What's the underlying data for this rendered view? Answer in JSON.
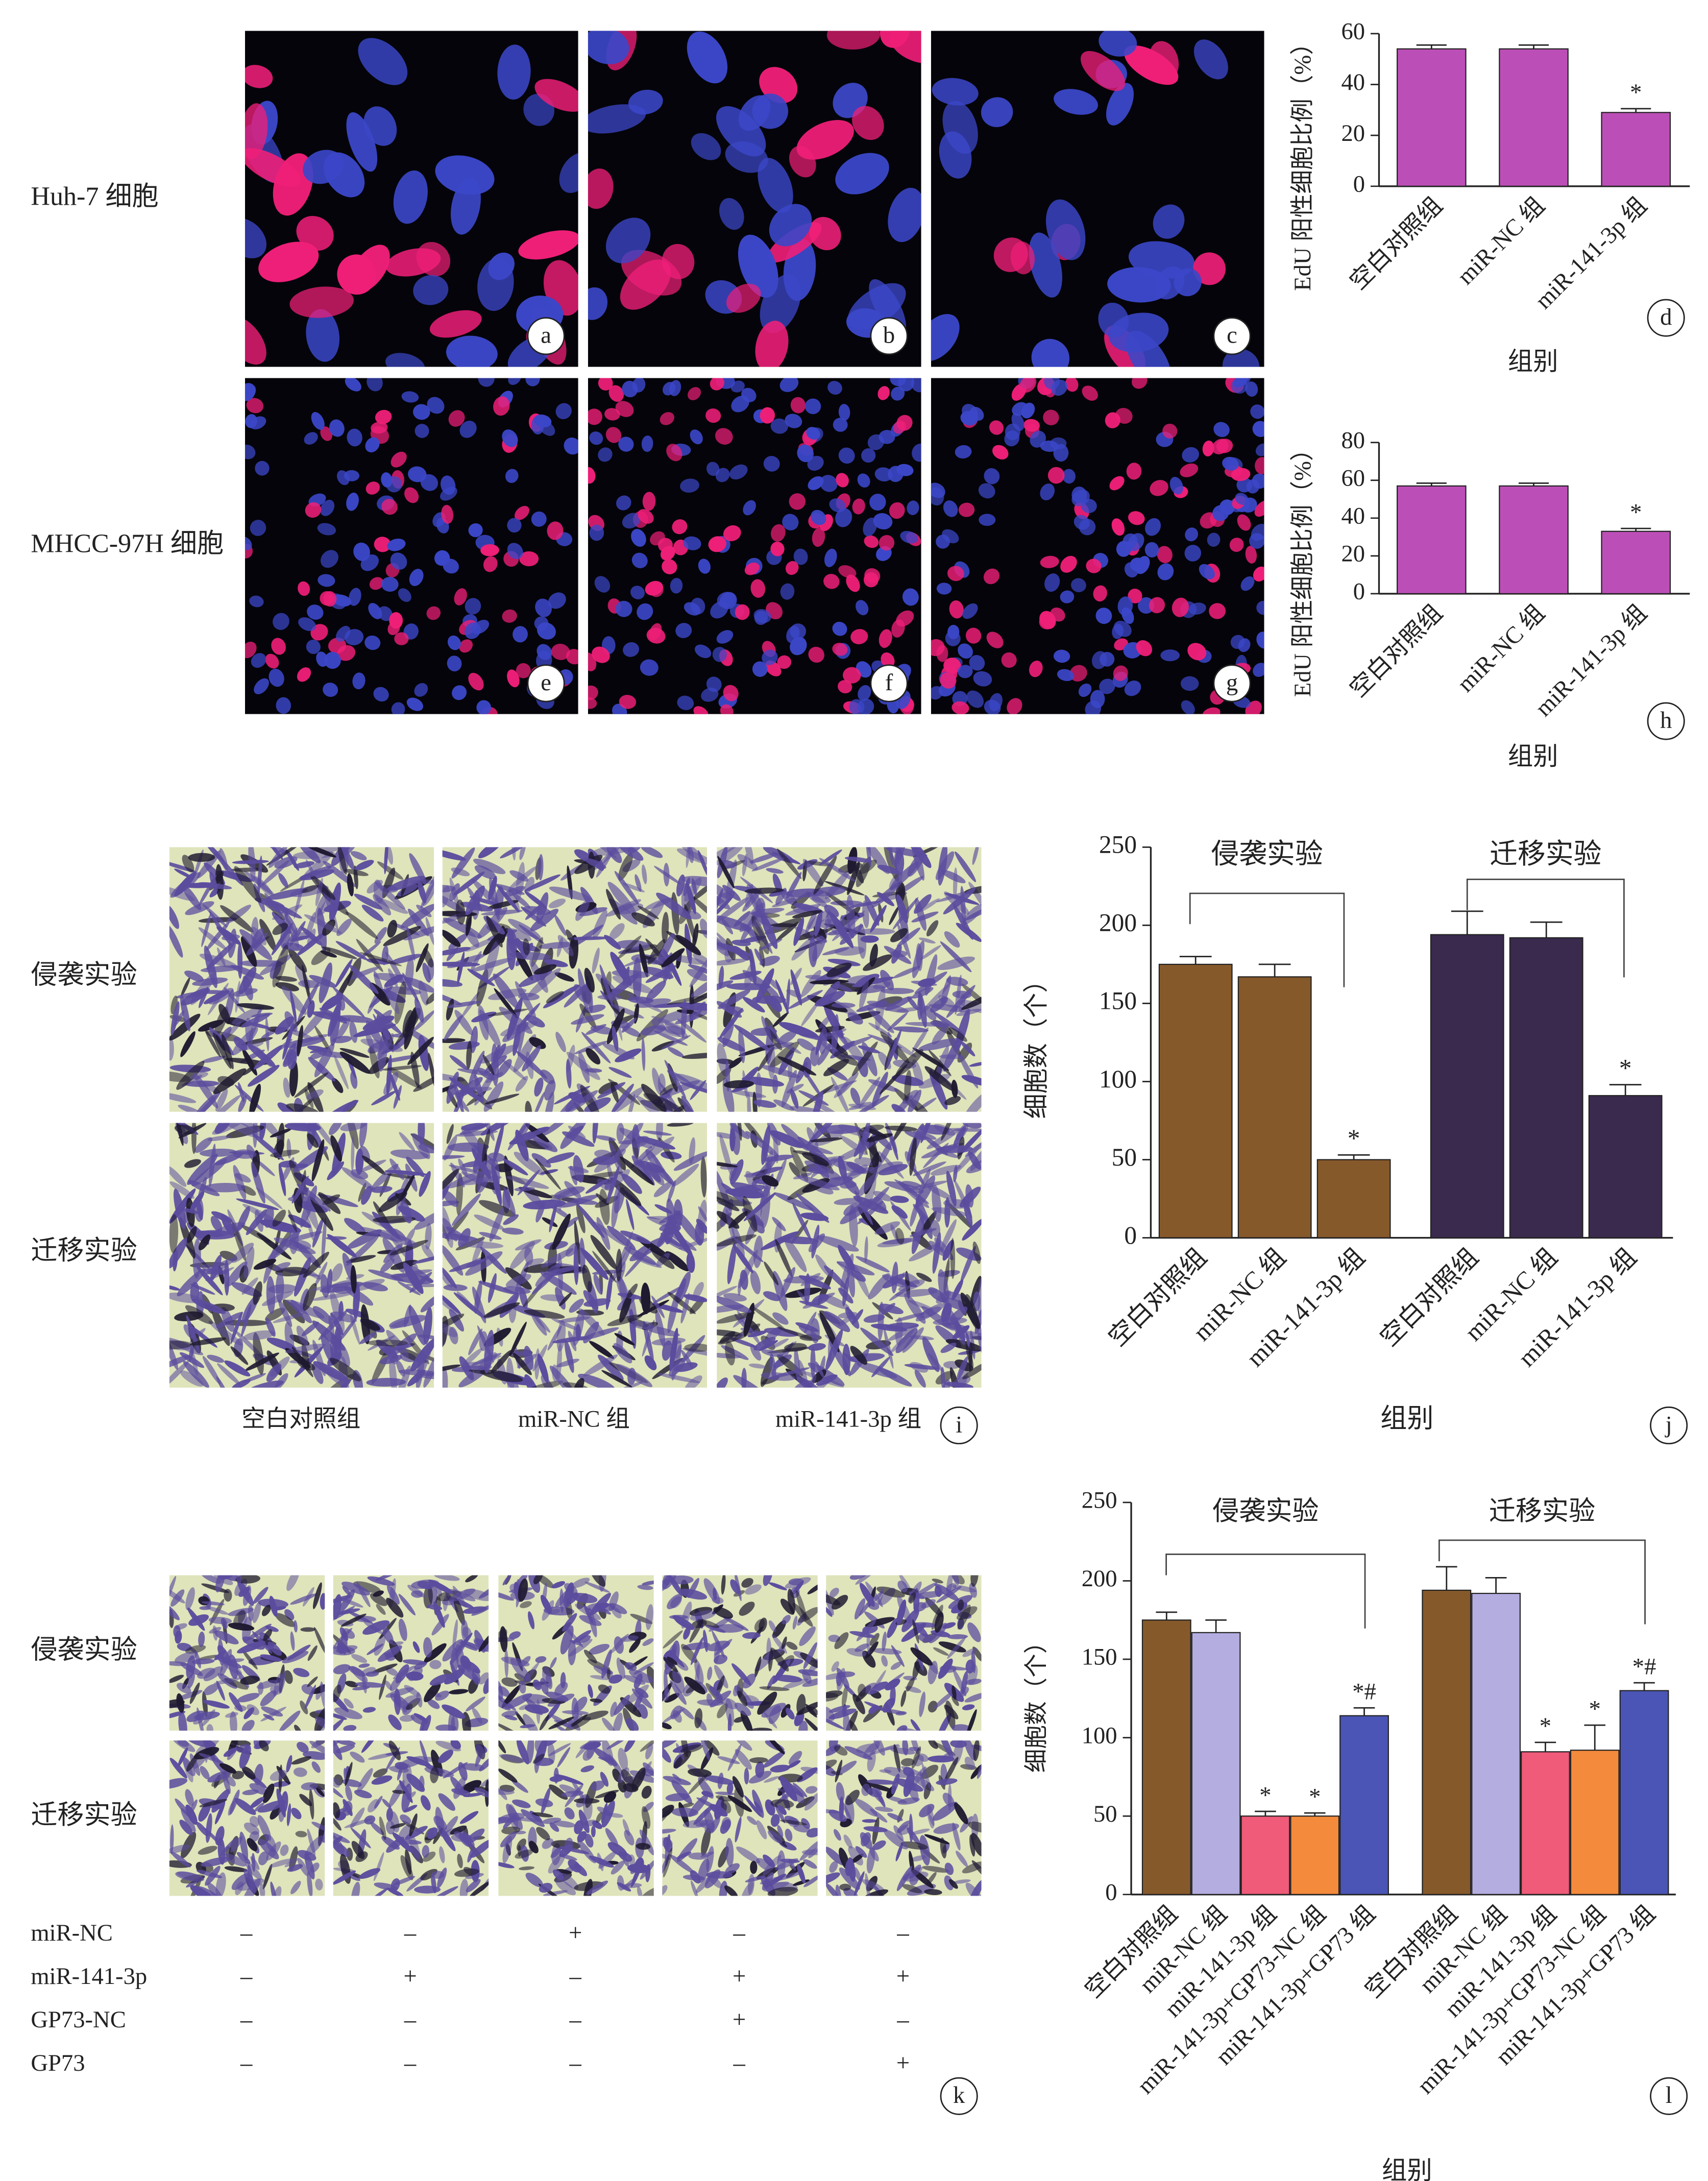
{
  "panels": {
    "fluorescence": {
      "row_labels": [
        "Huh-7 细胞",
        "MHCC-97H 细胞"
      ],
      "letters": [
        "a",
        "b",
        "c",
        "e",
        "f",
        "g"
      ]
    },
    "transwell": {
      "row_labels": [
        "侵袭实验",
        "迁移实验"
      ],
      "column_labels": [
        "空白对照组",
        "miR-NC 组",
        "miR-141-3p 组"
      ],
      "letter": "i"
    },
    "rescue": {
      "row_labels": [
        "侵袭实验",
        "迁移实验"
      ],
      "table": {
        "rows": [
          {
            "label": "miR-NC",
            "signs": [
              "–",
              "–",
              "+",
              "–",
              "–"
            ]
          },
          {
            "label": "miR-141-3p",
            "signs": [
              "–",
              "+",
              "–",
              "+",
              "+"
            ]
          },
          {
            "label": "GP73-NC",
            "signs": [
              "–",
              "–",
              "–",
              "+",
              "–"
            ]
          },
          {
            "label": "GP73",
            "signs": [
              "–",
              "–",
              "–",
              "–",
              "+"
            ]
          }
        ]
      },
      "letter": "k"
    }
  },
  "chart_data": [
    {
      "type": "bar",
      "panel": "d",
      "ylabel": "EdU 阳性细胞比例（%）",
      "xlabel": "组别",
      "categories": [
        "空白对照组",
        "miR-NC 组",
        "miR-141-3p 组"
      ],
      "values": [
        54,
        54,
        29
      ],
      "errors": [
        1.5,
        1.5,
        1.5
      ],
      "markers": [
        null,
        null,
        "*"
      ],
      "color": "#bc4fb7",
      "ylim": [
        0,
        60
      ],
      "yticks": [
        0,
        20,
        40,
        60
      ]
    },
    {
      "type": "bar",
      "panel": "h",
      "ylabel": "EdU 阳性细胞比例（%）",
      "xlabel": "组别",
      "categories": [
        "空白对照组",
        "miR-NC 组",
        "miR-141-3p 组"
      ],
      "values": [
        57,
        57,
        33
      ],
      "errors": [
        1.5,
        1.5,
        1.5
      ],
      "markers": [
        null,
        null,
        "*"
      ],
      "color": "#bc4fb7",
      "ylim": [
        0,
        80
      ],
      "yticks": [
        0,
        20,
        40,
        60,
        80
      ]
    },
    {
      "type": "bar",
      "panel": "j",
      "ylabel": "细胞数（个）",
      "xlabel": "组别",
      "categories": [
        "空白对照组",
        "miR-NC 组",
        "miR-141-3p 组"
      ],
      "series": [
        {
          "name": "侵袭实验",
          "color": "#86592b",
          "values": [
            175,
            167,
            50
          ],
          "errors": [
            5,
            8,
            3
          ],
          "markers": [
            null,
            null,
            "*"
          ]
        },
        {
          "name": "迁移实验",
          "color": "#3a2a4e",
          "values": [
            194,
            192,
            91
          ],
          "errors": [
            15,
            10,
            7
          ],
          "markers": [
            null,
            null,
            "*"
          ]
        }
      ],
      "ylim": [
        0,
        250
      ],
      "yticks": [
        0,
        50,
        100,
        150,
        200,
        250
      ]
    },
    {
      "type": "bar",
      "panel": "l",
      "ylabel": "细胞数（个）",
      "xlabel": "组别",
      "categories": [
        "空白对照组",
        "miR-NC 组",
        "miR-141-3p 组",
        "miR-141-3p+GP73-NC 组",
        "miR-141-3p+GP73 组"
      ],
      "colors": [
        "#86592b",
        "#b3ade0",
        "#ef5b79",
        "#f48b3c",
        "#4a55b5"
      ],
      "series": [
        {
          "name": "侵袭实验",
          "values": [
            175,
            167,
            50,
            50,
            114
          ],
          "errors": [
            5,
            8,
            3,
            2,
            5
          ],
          "markers": [
            null,
            null,
            "*",
            "*",
            "*#"
          ]
        },
        {
          "name": "迁移实验",
          "values": [
            194,
            192,
            91,
            92,
            130
          ],
          "errors": [
            15,
            10,
            6,
            16,
            5
          ],
          "markers": [
            null,
            null,
            "*",
            "*",
            "*#"
          ]
        }
      ],
      "ylim": [
        0,
        250
      ],
      "yticks": [
        0,
        50,
        100,
        150,
        200,
        250
      ]
    }
  ]
}
